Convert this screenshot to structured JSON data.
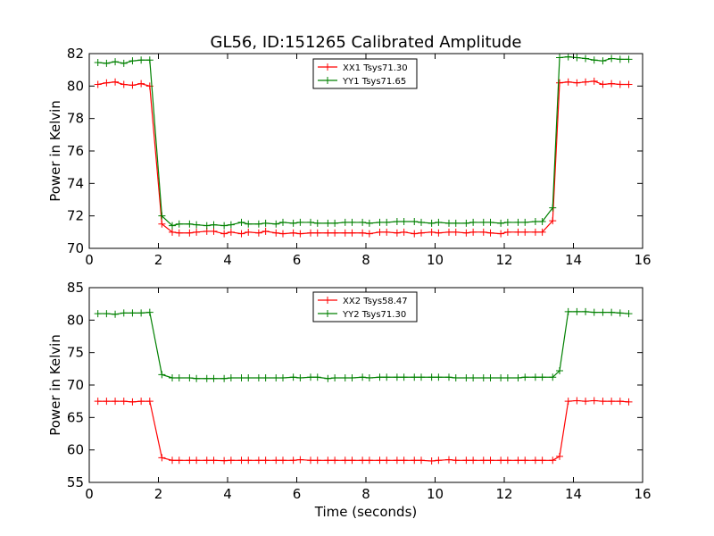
{
  "chart_data": {
    "type": "line",
    "title": "GL56, ID:151265 Calibrated Amplitude",
    "colors": {
      "XX": "#ff0000",
      "YY": "#008000"
    },
    "panels": [
      {
        "xlabel": "",
        "ylabel": "Power in Kelvin",
        "xlim": [
          0,
          16
        ],
        "ylim": [
          70,
          82
        ],
        "xticks": [
          0,
          2,
          4,
          6,
          8,
          10,
          12,
          14,
          16
        ],
        "yticks": [
          70,
          72,
          74,
          76,
          78,
          80,
          82
        ],
        "legend_position": "top-center",
        "x": [
          0.25,
          0.5,
          0.75,
          1.0,
          1.25,
          1.5,
          1.75,
          2.1,
          2.4,
          2.6,
          2.9,
          3.1,
          3.4,
          3.6,
          3.9,
          4.1,
          4.4,
          4.6,
          4.9,
          5.1,
          5.4,
          5.6,
          5.9,
          6.1,
          6.4,
          6.6,
          6.9,
          7.1,
          7.4,
          7.6,
          7.9,
          8.1,
          8.4,
          8.6,
          8.9,
          9.1,
          9.4,
          9.6,
          9.9,
          10.1,
          10.4,
          10.6,
          10.9,
          11.1,
          11.4,
          11.6,
          11.9,
          12.1,
          12.4,
          12.6,
          12.9,
          13.1,
          13.4,
          13.6,
          13.85,
          14.1,
          14.35,
          14.6,
          14.85,
          15.1,
          15.35,
          15.6
        ],
        "series": [
          {
            "name": "XX1 Tsys71.30",
            "color": "#ff0000",
            "values": [
              80.1,
              80.2,
              80.25,
              80.1,
              80.05,
              80.15,
              80.0,
              71.5,
              71.0,
              70.95,
              70.95,
              71.0,
              71.05,
              71.05,
              70.9,
              71.0,
              70.9,
              71.0,
              70.95,
              71.05,
              70.95,
              70.9,
              70.95,
              70.9,
              70.95,
              70.95,
              70.95,
              70.95,
              70.95,
              70.95,
              70.95,
              70.9,
              71.0,
              71.0,
              70.95,
              71.0,
              70.9,
              70.95,
              71.0,
              70.95,
              71.0,
              71.0,
              70.95,
              71.0,
              71.0,
              70.95,
              70.9,
              71.0,
              71.0,
              71.0,
              71.0,
              71.0,
              71.7,
              80.2,
              80.25,
              80.2,
              80.25,
              80.3,
              80.1,
              80.15,
              80.1,
              80.1
            ]
          },
          {
            "name": "YY1 Tsys71.65",
            "color": "#008000",
            "values": [
              81.45,
              81.4,
              81.5,
              81.4,
              81.55,
              81.6,
              81.6,
              72.0,
              71.4,
              71.5,
              71.5,
              71.45,
              71.4,
              71.45,
              71.4,
              71.45,
              71.6,
              71.5,
              71.5,
              71.55,
              71.5,
              71.6,
              71.55,
              71.6,
              71.6,
              71.55,
              71.55,
              71.55,
              71.6,
              71.6,
              71.6,
              71.55,
              71.6,
              71.6,
              71.65,
              71.65,
              71.65,
              71.6,
              71.55,
              71.6,
              71.55,
              71.55,
              71.55,
              71.6,
              71.6,
              71.6,
              71.55,
              71.6,
              71.6,
              71.6,
              71.65,
              71.65,
              72.5,
              81.75,
              81.8,
              81.75,
              81.7,
              81.6,
              81.55,
              81.7,
              81.65,
              81.65
            ]
          }
        ]
      },
      {
        "xlabel": "Time (seconds)",
        "ylabel": "Power in Kelvin",
        "xlim": [
          0,
          16
        ],
        "ylim": [
          55,
          85
        ],
        "xticks": [
          0,
          2,
          4,
          6,
          8,
          10,
          12,
          14,
          16
        ],
        "yticks": [
          55,
          60,
          65,
          70,
          75,
          80,
          85
        ],
        "legend_position": "top-center",
        "x": [
          0.25,
          0.5,
          0.75,
          1.0,
          1.25,
          1.5,
          1.75,
          2.1,
          2.4,
          2.6,
          2.9,
          3.1,
          3.4,
          3.6,
          3.9,
          4.1,
          4.4,
          4.6,
          4.9,
          5.1,
          5.4,
          5.6,
          5.9,
          6.1,
          6.4,
          6.6,
          6.9,
          7.1,
          7.4,
          7.6,
          7.9,
          8.1,
          8.4,
          8.6,
          8.9,
          9.1,
          9.4,
          9.6,
          9.9,
          10.1,
          10.4,
          10.6,
          10.9,
          11.1,
          11.4,
          11.6,
          11.9,
          12.1,
          12.4,
          12.6,
          12.9,
          13.1,
          13.4,
          13.6,
          13.85,
          14.1,
          14.35,
          14.6,
          14.85,
          15.1,
          15.35,
          15.6
        ],
        "series": [
          {
            "name": "XX2 Tsys58.47",
            "color": "#ff0000",
            "values": [
              67.5,
              67.5,
              67.5,
              67.5,
              67.4,
              67.5,
              67.5,
              58.8,
              58.4,
              58.4,
              58.4,
              58.4,
              58.4,
              58.4,
              58.35,
              58.4,
              58.4,
              58.4,
              58.4,
              58.4,
              58.4,
              58.4,
              58.4,
              58.5,
              58.4,
              58.4,
              58.4,
              58.4,
              58.4,
              58.4,
              58.4,
              58.4,
              58.4,
              58.4,
              58.4,
              58.4,
              58.4,
              58.4,
              58.3,
              58.4,
              58.5,
              58.4,
              58.4,
              58.4,
              58.4,
              58.4,
              58.4,
              58.4,
              58.4,
              58.4,
              58.4,
              58.4,
              58.4,
              59.0,
              67.5,
              67.6,
              67.5,
              67.6,
              67.5,
              67.5,
              67.5,
              67.4
            ]
          },
          {
            "name": "YY2 Tsys71.30",
            "color": "#008000",
            "values": [
              81.0,
              81.0,
              80.9,
              81.1,
              81.1,
              81.1,
              81.2,
              71.6,
              71.1,
              71.1,
              71.1,
              71.0,
              71.0,
              71.0,
              71.0,
              71.1,
              71.1,
              71.1,
              71.1,
              71.1,
              71.1,
              71.1,
              71.2,
              71.1,
              71.2,
              71.2,
              71.0,
              71.1,
              71.1,
              71.1,
              71.2,
              71.1,
              71.2,
              71.2,
              71.2,
              71.2,
              71.2,
              71.2,
              71.2,
              71.2,
              71.2,
              71.1,
              71.1,
              71.1,
              71.1,
              71.1,
              71.1,
              71.1,
              71.1,
              71.2,
              71.2,
              71.2,
              71.2,
              72.2,
              81.3,
              81.3,
              81.3,
              81.2,
              81.2,
              81.2,
              81.1,
              81.0
            ]
          }
        ]
      }
    ]
  }
}
